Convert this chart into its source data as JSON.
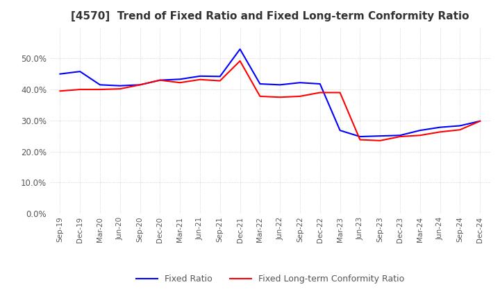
{
  "title": "[4570]  Trend of Fixed Ratio and Fixed Long-term Conformity Ratio",
  "x_labels": [
    "Sep-19",
    "Dec-19",
    "Mar-20",
    "Jun-20",
    "Sep-20",
    "Dec-20",
    "Mar-21",
    "Jun-21",
    "Sep-21",
    "Dec-21",
    "Mar-22",
    "Jun-22",
    "Sep-22",
    "Dec-22",
    "Mar-23",
    "Jun-23",
    "Sep-23",
    "Dec-23",
    "Mar-24",
    "Jun-24",
    "Sep-24",
    "Dec-24"
  ],
  "fixed_ratio": [
    0.45,
    0.458,
    0.415,
    0.412,
    0.415,
    0.43,
    0.433,
    0.443,
    0.442,
    0.53,
    0.418,
    0.415,
    0.422,
    0.418,
    0.268,
    0.248,
    0.25,
    0.252,
    0.268,
    0.278,
    0.283,
    0.298
  ],
  "fixed_lt_ratio": [
    0.395,
    0.4,
    0.4,
    0.402,
    0.415,
    0.43,
    0.422,
    0.432,
    0.428,
    0.492,
    0.378,
    0.375,
    0.378,
    0.39,
    0.39,
    0.238,
    0.235,
    0.248,
    0.252,
    0.263,
    0.27,
    0.298
  ],
  "ylim": [
    0.0,
    0.6
  ],
  "yticks": [
    0.0,
    0.1,
    0.2,
    0.3,
    0.4,
    0.5
  ],
  "line_color_fixed": "#0000FF",
  "line_color_lt": "#FF0000",
  "background_color": "#FFFFFF",
  "grid_color": "#AAAAAA",
  "legend_labels": [
    "Fixed Ratio",
    "Fixed Long-term Conformity Ratio"
  ]
}
